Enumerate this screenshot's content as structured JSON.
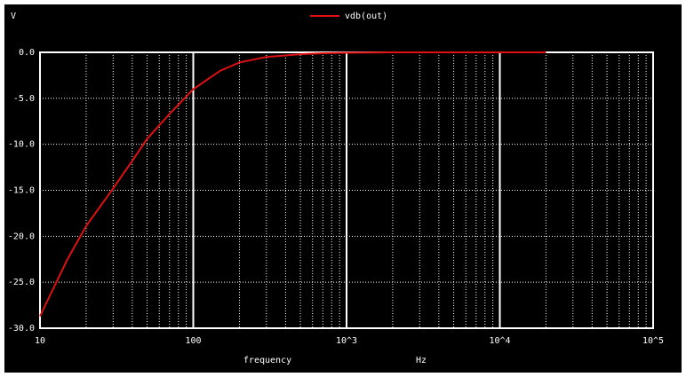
{
  "chart_data": {
    "type": "line",
    "y_label": "V",
    "x_label": "frequency",
    "x_unit": "Hz",
    "x": [
      10,
      15,
      20,
      30,
      40,
      50,
      70,
      100,
      150,
      200,
      300,
      500,
      700,
      1000,
      2000,
      5000,
      10000,
      20000
    ],
    "series": [
      {
        "name": "vdb(out)",
        "color": "#e01010",
        "values": [
          -28.7,
          -22.6,
          -18.9,
          -14.8,
          -11.8,
          -9.4,
          -6.7,
          -4.0,
          -2.0,
          -1.1,
          -0.5,
          -0.2,
          -0.1,
          -0.05,
          0,
          0,
          0,
          0
        ]
      }
    ],
    "xlim": [
      10,
      100000
    ],
    "log_x": true,
    "xticks": [
      10,
      100,
      {
        "value": 1000,
        "label": "10^3"
      },
      {
        "value": 10000,
        "label": "10^4"
      },
      {
        "value": 100000,
        "label": "10^5"
      }
    ],
    "ylim": [
      -30,
      0
    ],
    "yticks": [
      {
        "value": 0,
        "label": "0.0"
      },
      {
        "value": -5,
        "label": "-5.0"
      },
      {
        "value": -10,
        "label": "-10.0"
      },
      {
        "value": -15,
        "label": "-15.0"
      },
      {
        "value": -20,
        "label": "-20.0"
      },
      {
        "value": -25,
        "label": "-25.0"
      },
      {
        "value": -30,
        "label": "-30.0"
      }
    ],
    "grid": true,
    "minor_grid": true,
    "legend": "top"
  }
}
